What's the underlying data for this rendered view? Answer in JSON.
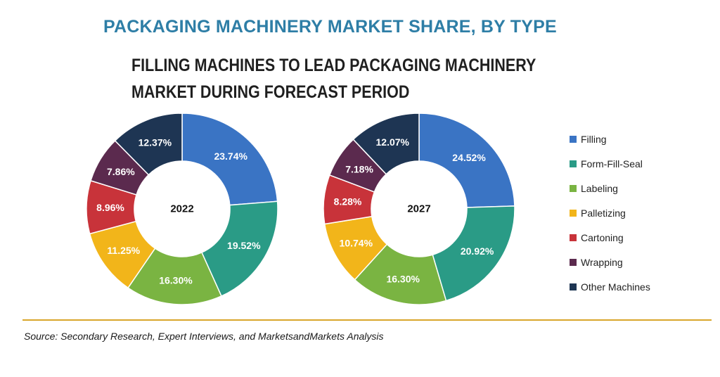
{
  "title": "PACKAGING MACHINERY MARKET SHARE, BY TYPE",
  "subtitle": "FILLING MACHINES TO LEAD PACKAGING MACHINERY MARKET DURING FORECAST PERIOD",
  "source": "Source: Secondary Research, Expert Interviews, and MarketsandMarkets Analysis",
  "colors": {
    "Filling": "#3a74c4",
    "Form-Fill-Seal": "#2a9b86",
    "Labeling": "#7ab442",
    "Palletizing": "#f2b51a",
    "Cartoning": "#c8333a",
    "Wrapping": "#5b2a4e",
    "Other Machines": "#1e3553",
    "divider": "#d9a62b",
    "title": "#2e7ea6"
  },
  "legend": [
    "Filling",
    "Form-Fill-Seal",
    "Labeling",
    "Palletizing",
    "Cartoning",
    "Wrapping",
    "Other Machines"
  ],
  "chart_data": [
    {
      "type": "pie",
      "variant": "donut",
      "center_label": "2022",
      "categories": [
        "Filling",
        "Form-Fill-Seal",
        "Labeling",
        "Palletizing",
        "Cartoning",
        "Wrapping",
        "Other Machines"
      ],
      "values": [
        23.74,
        19.52,
        16.3,
        11.25,
        8.96,
        7.86,
        12.37
      ],
      "labels": [
        "23.74%",
        "19.52%",
        "16.30%",
        "11.25%",
        "8.96%",
        "7.86%",
        "12.37%"
      ]
    },
    {
      "type": "pie",
      "variant": "donut",
      "center_label": "2027",
      "categories": [
        "Filling",
        "Form-Fill-Seal",
        "Labeling",
        "Palletizing",
        "Cartoning",
        "Wrapping",
        "Other Machines"
      ],
      "values": [
        24.52,
        20.92,
        16.3,
        10.74,
        8.28,
        7.18,
        12.07
      ],
      "labels": [
        "24.52%",
        "20.92%",
        "16.30%",
        "10.74%",
        "8.28%",
        "7.18%",
        "12.07%"
      ]
    }
  ]
}
